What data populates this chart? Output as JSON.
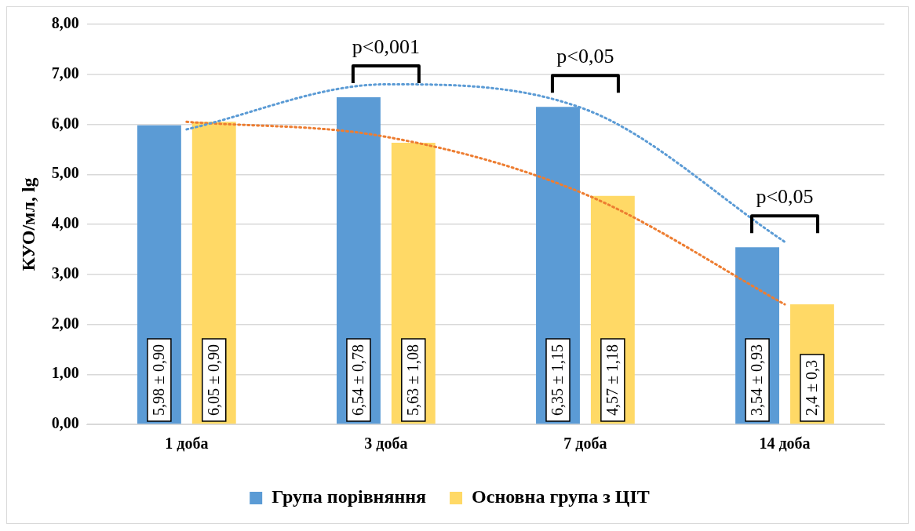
{
  "chart_data": {
    "type": "bar",
    "ylabel": "КУО/мл, lg",
    "categories": [
      "1 доба",
      "3 доба",
      "7 доба",
      "14 доба"
    ],
    "series": [
      {
        "name": "Група порівняння",
        "color": "#5b9bd5",
        "values": [
          5.98,
          6.54,
          6.35,
          3.54
        ],
        "value_labels": [
          "5,98 ± 0,90",
          "6,54 ± 0,78",
          "6,35 ± 1,15",
          "3,54 ± 0,93"
        ]
      },
      {
        "name": "Основна група з ЦІТ",
        "color": "#ffd966",
        "values": [
          6.05,
          5.63,
          4.57,
          2.4
        ],
        "value_labels": [
          "6,05 ± 0,90",
          "5,63 ± 1,08",
          "4,57 ± 1,18",
          "2,4 ± 0,3"
        ]
      },
      {
        "type": "line",
        "color": "#5b9bd5",
        "values": [
          5.9,
          6.8,
          6.3,
          3.65
        ],
        "line_style": "dotted",
        "marker": "none"
      },
      {
        "type": "line",
        "color": "#ed7d31",
        "values": [
          6.05,
          5.75,
          4.6,
          2.4
        ],
        "line_style": "dotted",
        "marker": "none"
      }
    ],
    "ylim": [
      0,
      8
    ],
    "yticks": [
      {
        "value": 0,
        "label": "0,00"
      },
      {
        "value": 1,
        "label": "1,00"
      },
      {
        "value": 2,
        "label": "2,00"
      },
      {
        "value": 3,
        "label": "3,00"
      },
      {
        "value": 4,
        "label": "4,00"
      },
      {
        "value": 5,
        "label": "5,00"
      },
      {
        "value": 6,
        "label": "6,00"
      },
      {
        "value": 7,
        "label": "7,00"
      },
      {
        "value": 8,
        "label": "8,00"
      }
    ],
    "grid": "y",
    "legend": "bottom",
    "annotations": [
      "p<0,001",
      "p<0,05",
      "p<0,05"
    ]
  }
}
